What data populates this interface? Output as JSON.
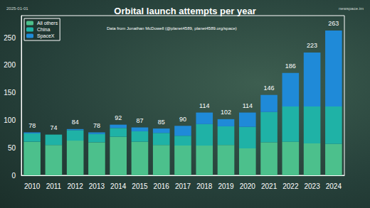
{
  "chart_data": {
    "type": "bar",
    "title": "Orbital launch attempts per year",
    "subtitle": "Data from Jonathan McDowell (@planet4589, planet4589.org/space)",
    "annotations": [
      "2025-01-01",
      "newspace.im"
    ],
    "categories": [
      "2010",
      "2011",
      "2012",
      "2013",
      "2014",
      "2015",
      "2016",
      "2017",
      "2018",
      "2019",
      "2020",
      "2021",
      "2022",
      "2023",
      "2024"
    ],
    "series": [
      {
        "name": "All others",
        "color": "#4cc08c",
        "values": [
          61,
          55,
          63,
          60,
          70,
          61,
          55,
          54,
          54,
          55,
          49,
          60,
          61,
          58,
          57
        ]
      },
      {
        "name": "China",
        "color": "#1fb2a6",
        "values": [
          15,
          19,
          19,
          15,
          16,
          19,
          22,
          18,
          39,
          34,
          39,
          55,
          64,
          67,
          68
        ]
      },
      {
        "name": "SpaceX",
        "color": "#1f8ad8",
        "values": [
          2,
          0,
          2,
          3,
          6,
          7,
          8,
          18,
          21,
          13,
          26,
          31,
          61,
          98,
          138
        ]
      }
    ],
    "totals": [
      78,
      74,
      84,
      78,
      92,
      87,
      85,
      90,
      114,
      102,
      114,
      146,
      186,
      223,
      263
    ],
    "stacked": true,
    "legend": "upper left",
    "grid": false,
    "ylim": [
      0,
      290
    ],
    "yticks": [
      0,
      50,
      100,
      150,
      200,
      250
    ]
  }
}
